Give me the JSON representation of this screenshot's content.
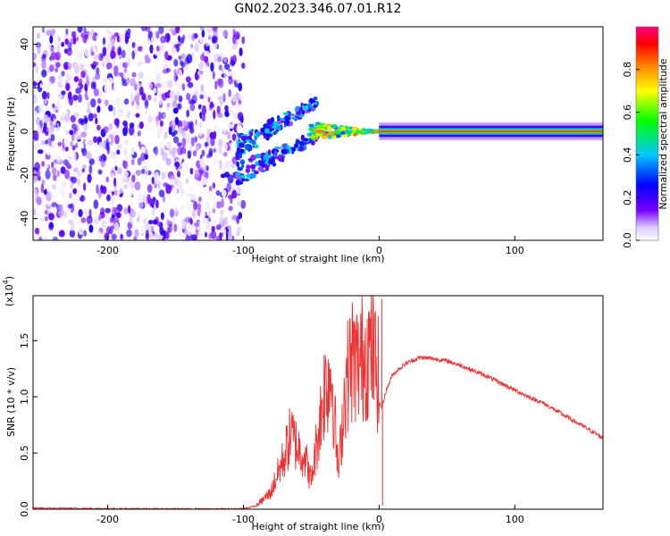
{
  "title": "GN02.2023.346.07.01.R12",
  "chart_data": [
    {
      "type": "heatmap",
      "xlabel": "Height of straight line (km)",
      "ylabel": "Frequency (Hz)",
      "xlim": [
        -255,
        165
      ],
      "ylim": [
        -50,
        48
      ],
      "xticks": [
        -200,
        -100,
        0,
        100
      ],
      "yticks": [
        -40,
        -20,
        0,
        20,
        40
      ],
      "colorbar": {
        "label": "Normalized spectral amplitude",
        "range": [
          0,
          1
        ],
        "ticks": [
          "0.0",
          "0.2",
          "0.4",
          "0.6",
          "0.8"
        ],
        "colormap": [
          "#ffffff",
          "#dcccff",
          "#7800ff",
          "#0000ff",
          "#00c8ff",
          "#00ff00",
          "#ffff00",
          "#ff7f00",
          "#ff0000",
          "#ff0080"
        ]
      },
      "regions": [
        {
          "name": "noise",
          "x": [
            -255,
            -100
          ],
          "y": [
            -50,
            48
          ],
          "amplitude": [
            0.0,
            0.25
          ]
        },
        {
          "name": "onset",
          "x": [
            -105,
            -45
          ],
          "y": [
            -25,
            20
          ],
          "amplitude": [
            0.1,
            0.45
          ]
        },
        {
          "name": "transition",
          "x": [
            -50,
            0
          ],
          "y": [
            -5,
            5
          ],
          "amplitude": [
            0.3,
            0.85
          ]
        },
        {
          "name": "carrier",
          "x": [
            0,
            165
          ],
          "y": [
            -2,
            2
          ],
          "amplitude": [
            0.85,
            1.0
          ]
        }
      ]
    },
    {
      "type": "line",
      "xlabel": "Height of straight line (km)",
      "ylabel": "SNR (10 * v/v)",
      "yscale_label": "(x10",
      "yscale_exp": "4",
      "xlim": [
        -255,
        165
      ],
      "ylim": [
        0,
        1.9
      ],
      "xticks": [
        -200,
        -100,
        0,
        100
      ],
      "yticks": [
        "0.0",
        "0.5",
        "1.0",
        "1.5"
      ],
      "color": "#ee3030",
      "series": [
        {
          "x": [
            -255,
            -200,
            -150,
            -110,
            -100,
            -90,
            -80,
            -70,
            -65,
            -60,
            -55,
            -50,
            -45,
            -40,
            -35,
            -30,
            -25,
            -20,
            -15,
            -10,
            -5,
            0,
            2,
            5,
            10,
            20,
            30,
            40,
            50,
            60,
            70,
            80,
            90,
            100,
            110,
            120,
            130,
            140,
            150,
            160,
            165
          ],
          "y": [
            0.01,
            0.005,
            0.003,
            0.002,
            0.006,
            0.03,
            0.12,
            0.38,
            0.55,
            0.45,
            0.4,
            0.2,
            0.55,
            0.9,
            1.0,
            0.25,
            0.9,
            1.1,
            1.05,
            1.15,
            1.15,
            0.95,
            0.9,
            1.05,
            1.2,
            1.3,
            1.35,
            1.34,
            1.32,
            1.28,
            1.23,
            1.18,
            1.12,
            1.06,
            1.0,
            0.95,
            0.88,
            0.81,
            0.74,
            0.67,
            0.63
          ],
          "spikes": [
            {
              "x": 2,
              "y": 1.87
            },
            {
              "x": 2.5,
              "y": 0.03
            }
          ]
        }
      ]
    }
  ]
}
